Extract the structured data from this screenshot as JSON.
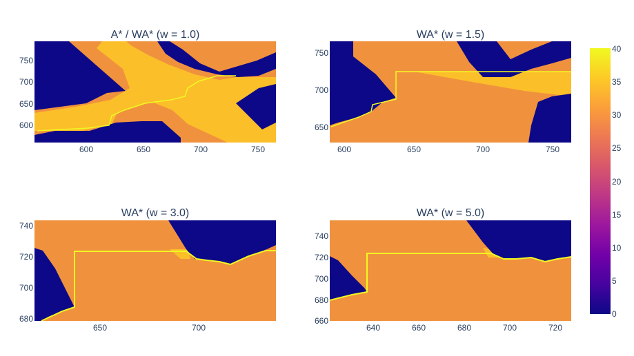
{
  "chart_data": [
    {
      "type": "heatmap",
      "title": "A* / WA* (w = 1.0)",
      "xlim": [
        557,
        764
      ],
      "ylim": [
        558,
        795
      ],
      "xticks": [
        600,
        650,
        700,
        750
      ],
      "yticks": [
        600,
        650,
        700,
        750
      ],
      "grid": false,
      "regions": [
        {
          "label": "background",
          "value": 32
        },
        {
          "label": "obstacles",
          "value": 0
        },
        {
          "label": "explored",
          "value": 36
        }
      ],
      "path_value": 40
    },
    {
      "type": "heatmap",
      "title": "WA* (w = 1.5)",
      "xlim": [
        590,
        764
      ],
      "ylim": [
        630,
        765
      ],
      "xticks": [
        600,
        650,
        700,
        750
      ],
      "yticks": [
        650,
        700,
        750
      ],
      "grid": false,
      "regions": [
        {
          "label": "background",
          "value": 32
        },
        {
          "label": "obstacles",
          "value": 0
        },
        {
          "label": "explored",
          "value": 36
        }
      ],
      "path_value": 40
    },
    {
      "type": "heatmap",
      "title": "WA* (w = 3.0)",
      "xlim": [
        630,
        740
      ],
      "ylim": [
        679,
        744
      ],
      "xticks": [
        650,
        700
      ],
      "yticks": [
        680,
        700,
        720,
        740
      ],
      "grid": false,
      "regions": [
        {
          "label": "background",
          "value": 32
        },
        {
          "label": "obstacles",
          "value": 0
        },
        {
          "label": "explored",
          "value": 36
        }
      ],
      "path_value": 40
    },
    {
      "type": "heatmap",
      "title": "WA* (w = 5.0)",
      "xlim": [
        622,
        728
      ],
      "ylim": [
        660,
        755
      ],
      "xticks": [
        640,
        660,
        680,
        700,
        720
      ],
      "yticks": [
        660,
        680,
        700,
        720,
        740
      ],
      "grid": false,
      "regions": [
        {
          "label": "background",
          "value": 32
        },
        {
          "label": "obstacles",
          "value": 0
        },
        {
          "label": "explored",
          "value": 36
        }
      ],
      "path_value": 40
    }
  ],
  "colorbar": {
    "colorscale": "Plasma",
    "range": [
      0,
      40
    ],
    "ticks": [
      0,
      5,
      10,
      15,
      20,
      25,
      30,
      35,
      40
    ]
  },
  "colors": {
    "obstacle": "#0d0887",
    "background": "#f0923d",
    "explored": "#fbbf2a",
    "path": "#f0f921"
  }
}
